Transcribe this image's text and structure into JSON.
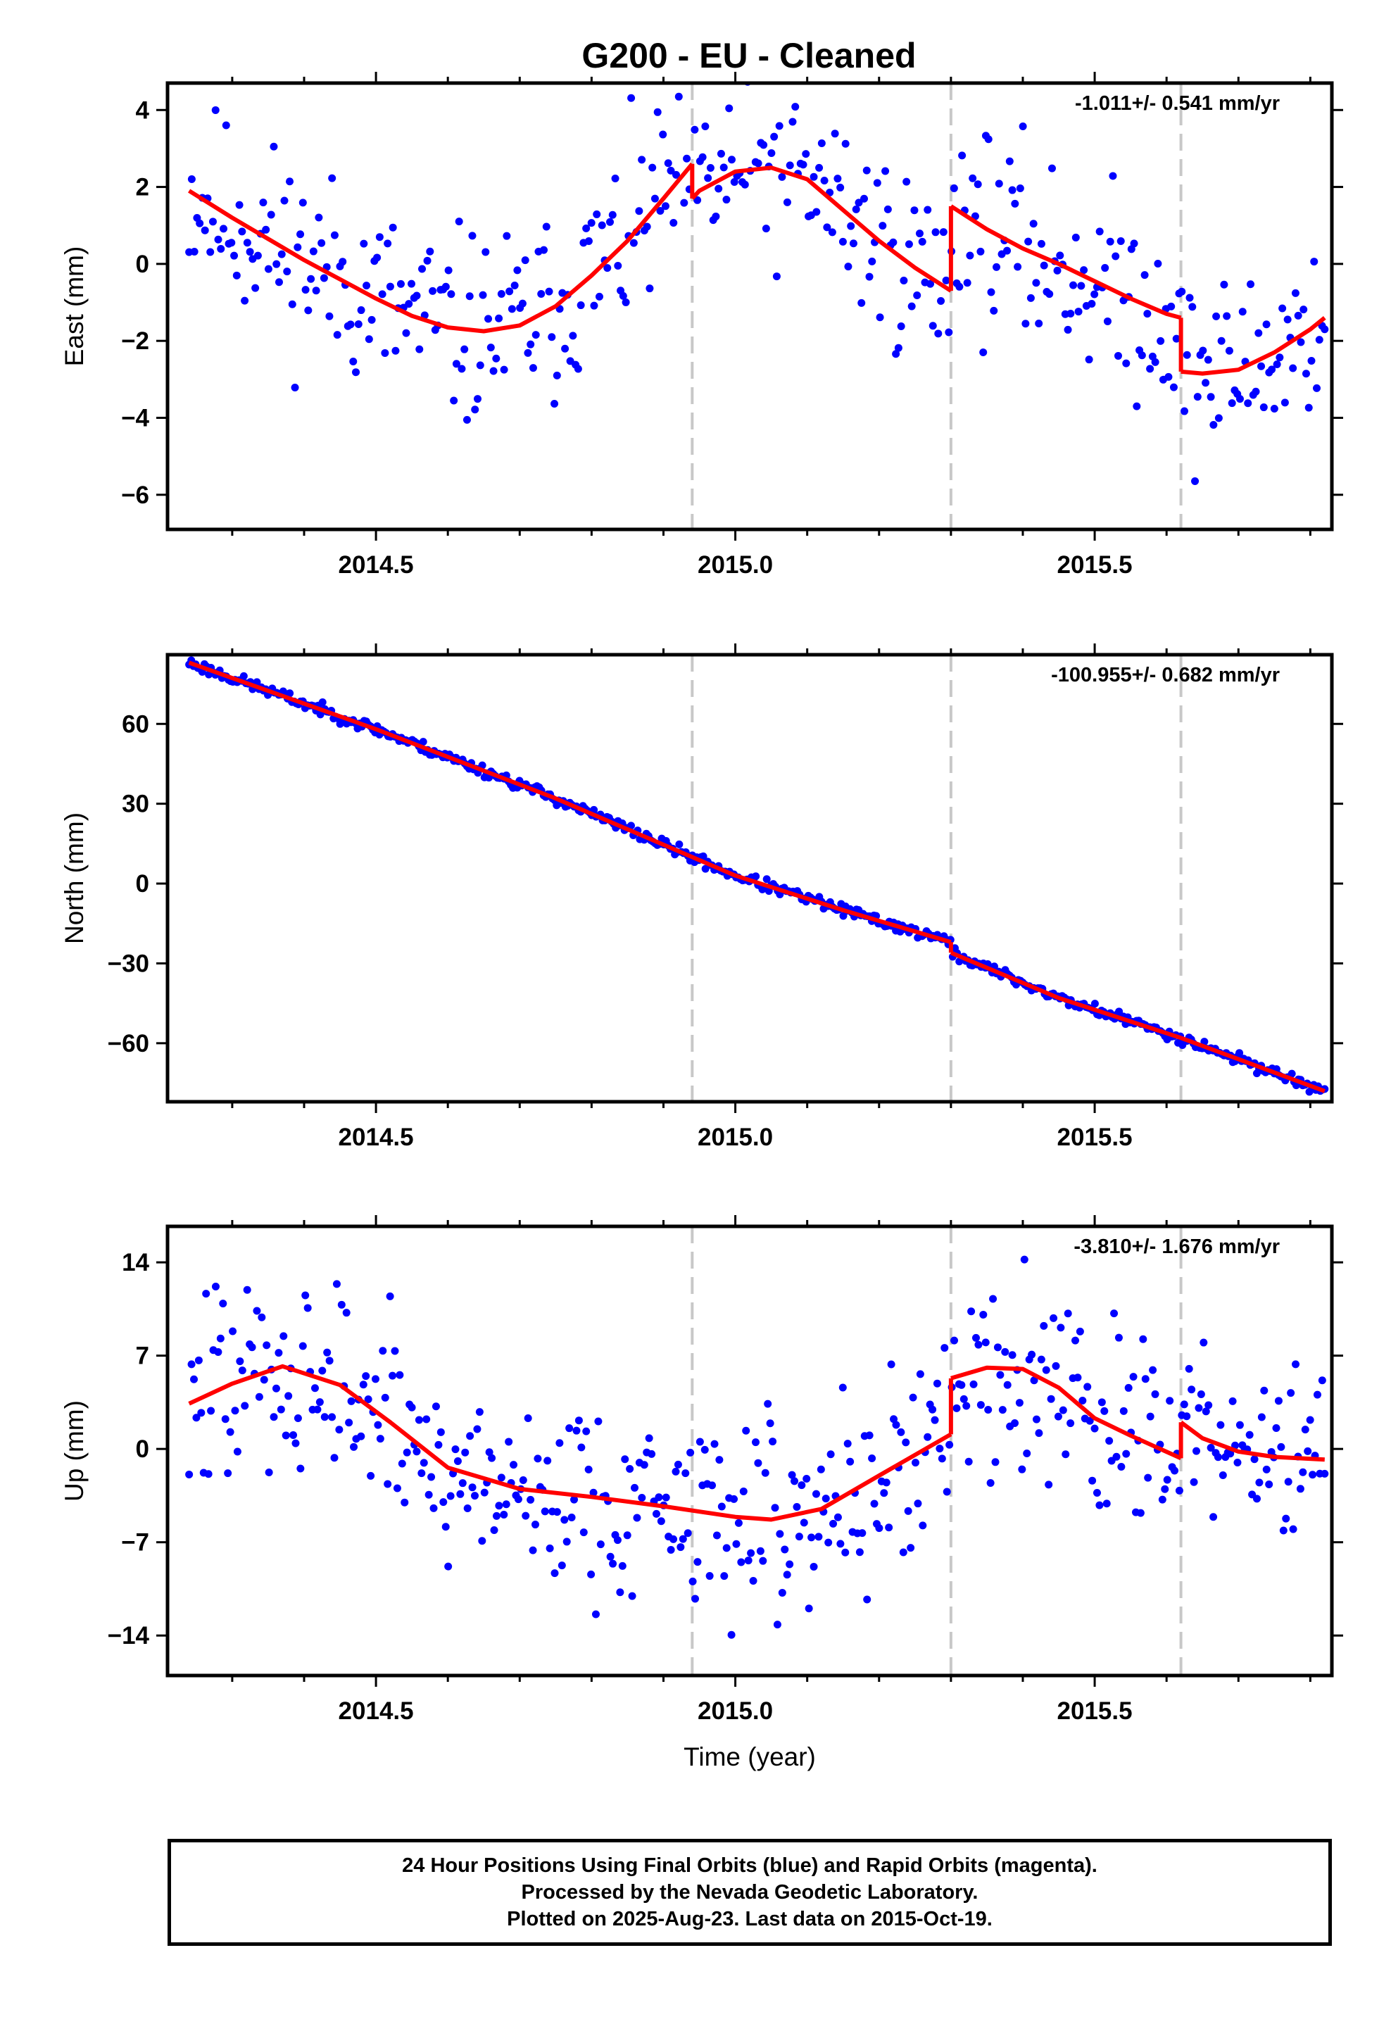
{
  "figure": {
    "title": "G200  - EU - Cleaned"
  },
  "chart_data": [
    {
      "type": "scatter",
      "component": "east",
      "ylabel": "East (mm)",
      "xlabel": "",
      "xlim": [
        2014.21,
        2015.83
      ],
      "ylim": [
        -6.9,
        4.7
      ],
      "yticks": [
        4,
        2,
        0,
        -2,
        -4,
        -6
      ],
      "ytick_labels": [
        "4",
        "2",
        "0",
        "−2",
        "−4",
        "−6"
      ],
      "xticks": [
        2014.5,
        2015.0,
        2015.5
      ],
      "xtick_labels": [
        "2014.5",
        "2015.0",
        "2015.5"
      ],
      "rate_text": "-1.011+/- 0.541 mm/yr",
      "breaks": [
        2014.94,
        2015.3,
        2015.62
      ],
      "model_segments": [
        {
          "x": [
            2014.24,
            2014.3,
            2014.4,
            2014.5,
            2014.55,
            2014.6,
            2014.65,
            2014.7,
            2014.75,
            2014.8,
            2014.85,
            2014.9,
            2014.94
          ],
          "y": [
            1.9,
            1.2,
            0.1,
            -0.9,
            -1.35,
            -1.65,
            -1.75,
            -1.6,
            -1.1,
            -0.3,
            0.6,
            1.7,
            2.6
          ]
        },
        {
          "x": [
            2014.94,
            2014.95,
            2015.0,
            2015.05,
            2015.1,
            2015.15,
            2015.2,
            2015.25,
            2015.3
          ],
          "y": [
            1.7,
            1.9,
            2.4,
            2.5,
            2.2,
            1.4,
            0.6,
            -0.1,
            -0.7
          ]
        },
        {
          "x": [
            2015.3,
            2015.35,
            2015.4,
            2015.45,
            2015.5,
            2015.55,
            2015.6,
            2015.62
          ],
          "y": [
            1.5,
            0.9,
            0.4,
            0.0,
            -0.45,
            -0.9,
            -1.3,
            -1.4
          ]
        },
        {
          "x": [
            2015.62,
            2015.65,
            2015.7,
            2015.75,
            2015.8,
            2015.82
          ],
          "y": [
            -2.8,
            -2.85,
            -2.75,
            -2.3,
            -1.7,
            -1.4
          ]
        }
      ],
      "scatter": {
        "seed": 11,
        "count": 430,
        "noise": 1.4
      }
    },
    {
      "type": "scatter",
      "component": "north",
      "ylabel": "North (mm)",
      "xlabel": "",
      "xlim": [
        2014.21,
        2015.83
      ],
      "ylim": [
        -82,
        86
      ],
      "yticks": [
        60,
        30,
        0,
        -30,
        -60
      ],
      "ytick_labels": [
        "60",
        "30",
        "0",
        "−30",
        "−60"
      ],
      "xticks": [
        2014.5,
        2015.0,
        2015.5
      ],
      "xtick_labels": [
        "2014.5",
        "2015.0",
        "2015.5"
      ],
      "rate_text": "-100.955+/- 0.682 mm/yr",
      "breaks": [
        2014.94,
        2015.3,
        2015.62
      ],
      "model_segments": [
        {
          "x": [
            2014.24,
            2014.5,
            2014.75,
            2015.0,
            2015.15,
            2015.3
          ],
          "y": [
            83,
            58,
            32,
            3,
            -10,
            -22
          ]
        },
        {
          "x": [
            2015.3,
            2015.45,
            2015.62
          ],
          "y": [
            -26,
            -43,
            -58
          ]
        },
        {
          "x": [
            2015.62,
            2015.82
          ],
          "y": [
            -58,
            -78
          ]
        }
      ],
      "scatter": {
        "seed": 23,
        "count": 520,
        "noise": 1.2
      }
    },
    {
      "type": "scatter",
      "component": "up",
      "ylabel": "Up (mm)",
      "xlabel": "Time (year)",
      "xlim": [
        2014.21,
        2015.83
      ],
      "ylim": [
        -17,
        16.7
      ],
      "yticks": [
        14,
        7,
        0,
        -7,
        -14
      ],
      "ytick_labels": [
        "14",
        "7",
        "0",
        "−7",
        "−14"
      ],
      "xticks": [
        2014.5,
        2015.0,
        2015.5
      ],
      "xtick_labels": [
        "2014.5",
        "2015.0",
        "2015.5"
      ],
      "rate_text": "-3.810+/- 1.676 mm/yr",
      "breaks": [
        2014.94,
        2015.3,
        2015.62
      ],
      "model_segments": [
        {
          "x": [
            2014.24,
            2014.3,
            2014.37,
            2014.45,
            2014.52,
            2014.6,
            2014.7,
            2014.8,
            2014.9,
            2015.0,
            2015.05,
            2015.12,
            2015.2,
            2015.3
          ],
          "y": [
            3.4,
            4.9,
            6.2,
            4.8,
            2.0,
            -1.4,
            -3.0,
            -3.6,
            -4.3,
            -5.1,
            -5.3,
            -4.5,
            -2.0,
            1.1
          ]
        },
        {
          "x": [
            2015.3,
            2015.35,
            2015.4,
            2015.45,
            2015.5,
            2015.55,
            2015.62
          ],
          "y": [
            5.3,
            6.1,
            6.0,
            4.6,
            2.3,
            1.0,
            -0.7
          ]
        },
        {
          "x": [
            2015.62,
            2015.65,
            2015.7,
            2015.75,
            2015.82
          ],
          "y": [
            2.0,
            0.8,
            -0.2,
            -0.6,
            -0.8
          ]
        }
      ],
      "scatter": {
        "seed": 47,
        "count": 470,
        "noise": 4.2
      }
    }
  ],
  "footer": {
    "line1": "24 Hour Positions Using Final Orbits (blue) and Rapid Orbits (magenta).",
    "line2": "Processed by the Nevada Geodetic Laboratory.",
    "line3": "Plotted on 2025-Aug-23. Last data on 2015-Oct-19."
  },
  "colors": {
    "points": "#0000ff",
    "model": "#ff0000",
    "breaks": "#c8c8c8",
    "axes": "#000000"
  }
}
